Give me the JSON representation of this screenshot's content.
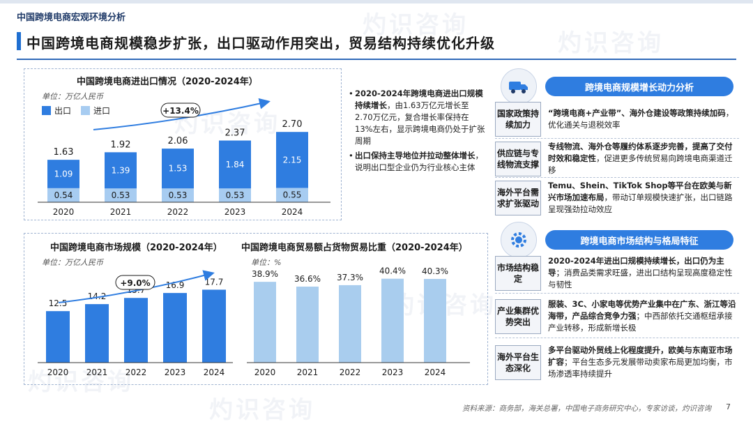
{
  "header": {
    "section": "中国跨境电商宏观环境分析",
    "title": "中国跨境电商规模稳步扩张，出口驱动作用突出，贸易结构持续优化升级"
  },
  "watermarks": [
    "灼识咨询",
    "灼识咨询",
    "灼识咨询",
    "灼识咨询",
    "灼识咨询",
    "灼识咨询"
  ],
  "colors": {
    "export": "#2f7de0",
    "import": "#a7ccf1",
    "share": "#a9cdee",
    "accent": "#2f69b8"
  },
  "chart_data": [
    {
      "type": "bar",
      "title": "中国跨境电商进出口情况（2020-2024年）",
      "unit": "单位：万亿人民币",
      "categories": [
        "2020",
        "2021",
        "2022",
        "2023",
        "2024"
      ],
      "series": [
        {
          "name": "出口",
          "values": [
            1.09,
            1.39,
            1.53,
            1.84,
            2.15
          ]
        },
        {
          "name": "进口",
          "values": [
            0.54,
            0.53,
            0.53,
            0.53,
            0.55
          ]
        }
      ],
      "totals": [
        1.63,
        1.92,
        2.06,
        2.37,
        2.7
      ],
      "totals_labels": [
        "1.63",
        "1.92",
        "2.06",
        "2.37",
        "2.70"
      ],
      "export_labels": [
        "1.09",
        "1.39",
        "1.53",
        "1.84",
        "2.15"
      ],
      "import_labels": [
        "0.54",
        "0.53",
        "0.53",
        "0.53",
        "0.55"
      ],
      "growth_label": "+13.4%",
      "stacked": true,
      "ylim": [
        0,
        3.0
      ]
    },
    {
      "type": "bar",
      "title": "中国跨境电商市场规模（2020-2024年）",
      "unit": "单位：万亿人民币",
      "categories": [
        "2020",
        "2021",
        "2022",
        "2023",
        "2024"
      ],
      "values": [
        12.5,
        14.2,
        15.7,
        16.9,
        17.7
      ],
      "value_labels": [
        "12.5",
        "14.2",
        "15.7",
        "16.9",
        "17.7"
      ],
      "growth_label": "+9.0%",
      "ylim": [
        0,
        22
      ]
    },
    {
      "type": "bar",
      "title": "中国跨境电商贸易额占货物贸易比重（2020-2024年）",
      "unit": "单位：%",
      "categories": [
        "2020",
        "2021",
        "2022",
        "2023",
        "2024"
      ],
      "values": [
        38.9,
        36.6,
        37.3,
        40.4,
        40.3
      ],
      "value_labels": [
        "38.9%",
        "36.6%",
        "37.3%",
        "40.4%",
        "40.3%"
      ],
      "ylim": [
        0,
        47
      ]
    }
  ],
  "notes": [
    {
      "bold": "2020-2024年跨境电商进出口规模持续增长",
      "text": "，由1.63万亿元增长至2.70万亿元，复合增长率保持在13%左右，显示跨境电商仍处于扩张周期"
    },
    {
      "bold": "出口保持主导地位并拉动整体增长",
      "text": "，说明出口型企业仍为行业核心主体"
    }
  ],
  "side": {
    "growth": {
      "header": "跨境电商规模增长动力分析",
      "rows": [
        {
          "label": "国家政策持续加力",
          "bold": "“跨境电商+产业带”、海外仓建设等政策持续加码",
          "text": "，优化通关与退税效率"
        },
        {
          "label": "供应链与专线物流支撑",
          "bold": "专线物流、海外仓等履约体系逐步完善，提高了交付时效和稳定性",
          "text": "，促进更多传统贸易向跨境电商渠道迁移"
        },
        {
          "label": "海外平台需求扩张驱动",
          "bold": "Temu、Shein、TikTok Shop等平台在欧美与新兴市场加速布局",
          "text": "，带动订单规模快速扩张，出口链路呈现强劲拉动效应"
        }
      ]
    },
    "structure": {
      "header": "跨境电商市场结构与格局特征",
      "rows": [
        {
          "label": "市场结构稳定",
          "bold": "2020-2024年进出口规模持续增长，出口仍为主导",
          "text": "；消费品类需求旺盛，进出口结构呈现高度稳定性与韧性"
        },
        {
          "label": "产业集群优势突出",
          "bold": "服装、3C、小家电等优势产业集中在广东、浙江等沿海带，产品综合竞争力强",
          "text": "；中西部依托交通枢纽承接产业转移，形成新增长极"
        },
        {
          "label": "海外平台生态深化",
          "bold": "多平台驱动外贸线上化程度提升，欧美与东南亚市场扩容",
          "text": "；平台生态多元发展带动卖家布局更加均衡，市场渗透率持续提升"
        }
      ]
    }
  },
  "footer": {
    "source": "资料来源：商务部，海关总署，中国电子商务研究中心，专家访谈，灼识咨询",
    "page": "7"
  }
}
